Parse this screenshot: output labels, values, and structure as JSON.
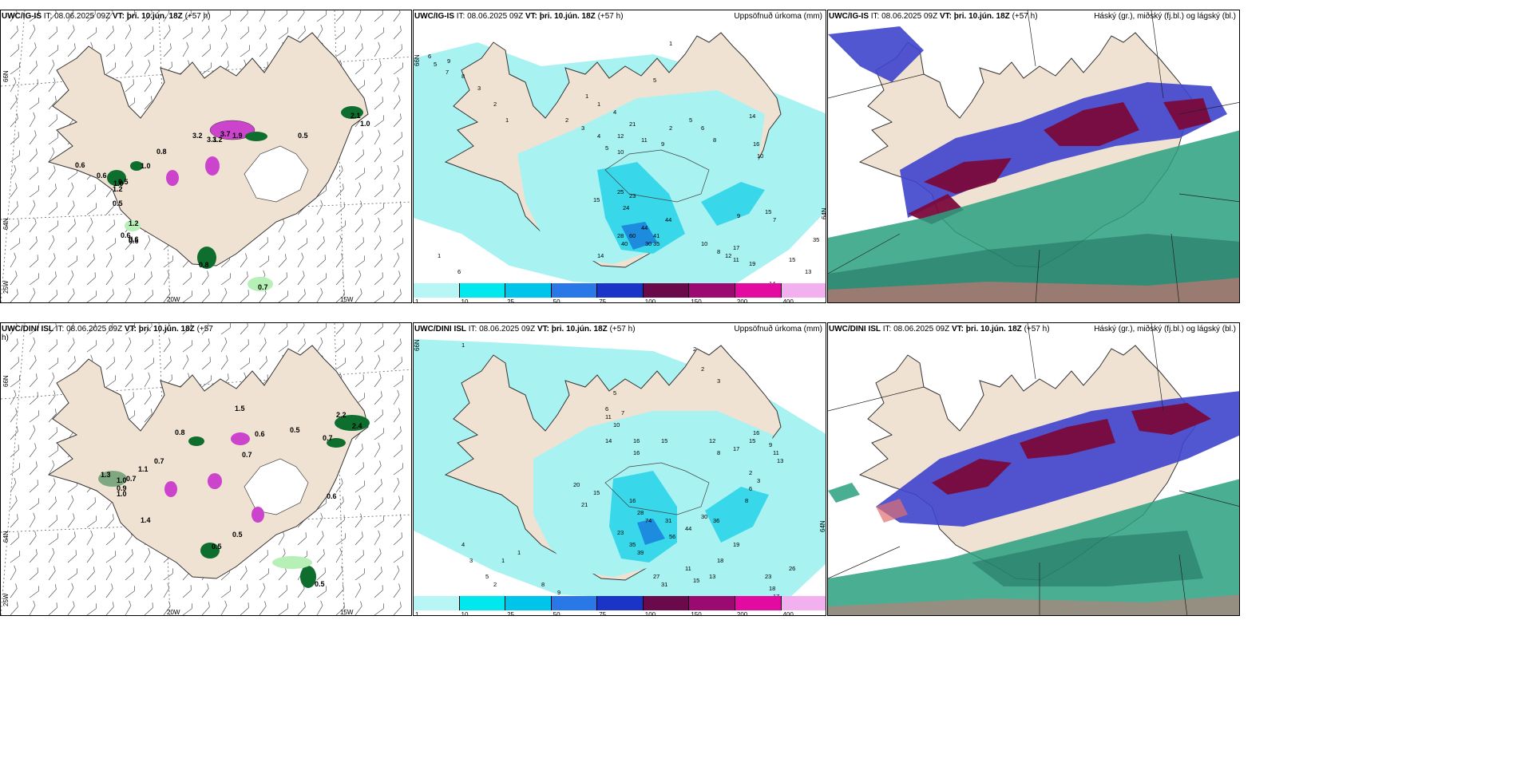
{
  "panels": [
    {
      "id": "p1",
      "model": "UWC/IG-IS",
      "it": "IT: 08.06.2025 09Z",
      "vt_label": "VT:",
      "vt": "þri. 10.jún. 18Z",
      "lead": "(+57 h)",
      "right": ""
    },
    {
      "id": "p2",
      "model": "UWC/IG-IS",
      "it": "IT: 08.06.2025 09Z",
      "vt_label": "VT:",
      "vt": "þri. 10.jún. 18Z",
      "lead": "(+57 h)",
      "right": "Uppsöfnuð úrkoma (mm)"
    },
    {
      "id": "p3",
      "model": "UWC/IG-IS",
      "it": "IT: 08.06.2025 09Z",
      "vt_label": "VT:",
      "vt": "þri. 10.jún. 18Z",
      "lead": "(+57 h)",
      "right": "Háský (gr.), miðský (fj.bl.) og lágský (bl.)"
    },
    {
      "id": "p4",
      "model": "UWC/DINI ISL",
      "it": "IT: 08.06.2025 09Z",
      "vt_label": "VT:",
      "vt": "þri. 10.jún. 18Z",
      "lead": "(+57",
      "lead2": "h)",
      "right": ""
    },
    {
      "id": "p5",
      "model": "UWC/DINI ISL",
      "it": "IT: 08.06.2025 09Z",
      "vt_label": "VT:",
      "vt": "þri. 10.jún. 18Z",
      "lead": "(+57 h)",
      "right": "Uppsöfnuð úrkoma (mm)"
    },
    {
      "id": "p6",
      "model": "UWC/DINI ISL",
      "it": "IT: 08.06.2025 09Z",
      "vt_label": "VT:",
      "vt": "þri. 10.jún. 18Z",
      "lead": "(+57 h)",
      "right": "Háský (gr.), miðský (fj.bl.) og lágský (bl.)"
    }
  ],
  "grid_labels": {
    "lat66": "66N",
    "lat64": "64N",
    "lon25": "25W",
    "lon20": "20W",
    "lon15": "15W"
  },
  "colorbar": {
    "labels": [
      "1",
      "10",
      "25",
      "50",
      "75",
      "100",
      "150",
      "200",
      "400"
    ],
    "colors": [
      "#b8f6f6",
      "#00e8ee",
      "#00c4ea",
      "#2a78e8",
      "#1a34c8",
      "#6a0a4a",
      "#9a0a70",
      "#e20aa0",
      "#f2b0ee"
    ]
  },
  "colors": {
    "land": "#efe2d2",
    "precip_light": "#a8f2f2",
    "precip_mid": "#38d8ea",
    "precip_heavy": "#1e8cde",
    "green_light": "#b6f0b6",
    "green_dark": "#0e6e2e",
    "magenta": "#cc44cc",
    "high_cloud": "#2aa080",
    "mid_cloud": "#3e44cc",
    "low_cloud": "#7a0a3c"
  },
  "p1_values": [
    "0.6",
    "0.6",
    "0.6",
    "0.8",
    "0.5",
    "0.5",
    "1.0",
    "1.0",
    "1.2",
    "1.2",
    "0.6",
    "0.6",
    "3.2",
    "3.1",
    "0.5",
    "1.9",
    "3.2",
    "3.7",
    "0.8",
    "0.7",
    "2.1",
    "1.0"
  ],
  "p4_values": [
    "0.8",
    "1.1",
    "0.7",
    "1.5",
    "1.3",
    "1.0",
    "0.7",
    "0.9",
    "1.0",
    "1.4",
    "0.5",
    "0.6",
    "0.7",
    "0.5",
    "0.5",
    "0.7",
    "0.6",
    "2.2",
    "2.4",
    "0.5"
  ],
  "p2_values": [
    "6",
    "9",
    "1",
    "5",
    "2",
    "1",
    "1",
    "4",
    "2",
    "3",
    "4",
    "5",
    "12",
    "10",
    "21",
    "11",
    "9",
    "5",
    "6",
    "8",
    "14",
    "16",
    "10",
    "15",
    "25",
    "23",
    "24",
    "44",
    "41",
    "44",
    "40",
    "60",
    "35",
    "30",
    "28",
    "14",
    "17",
    "19",
    "10",
    "8",
    "12",
    "11",
    "9",
    "15",
    "7",
    "35",
    "13",
    "15",
    "14",
    "5",
    "7",
    "8",
    "3",
    "2",
    "1",
    "1",
    "6",
    "7"
  ],
  "p5_values": [
    "1",
    "2",
    "2",
    "3",
    "5",
    "6",
    "7",
    "11",
    "10",
    "14",
    "16",
    "15",
    "12",
    "8",
    "16",
    "17",
    "15",
    "16",
    "9",
    "11",
    "13",
    "2",
    "3",
    "6",
    "8",
    "20",
    "15",
    "21",
    "16",
    "28",
    "23",
    "35",
    "39",
    "56",
    "31",
    "74",
    "44",
    "30",
    "36",
    "19",
    "18",
    "13",
    "23",
    "18",
    "17",
    "26",
    "4",
    "3",
    "5",
    "2",
    "1",
    "1",
    "8",
    "9",
    "27",
    "31",
    "11",
    "15"
  ]
}
